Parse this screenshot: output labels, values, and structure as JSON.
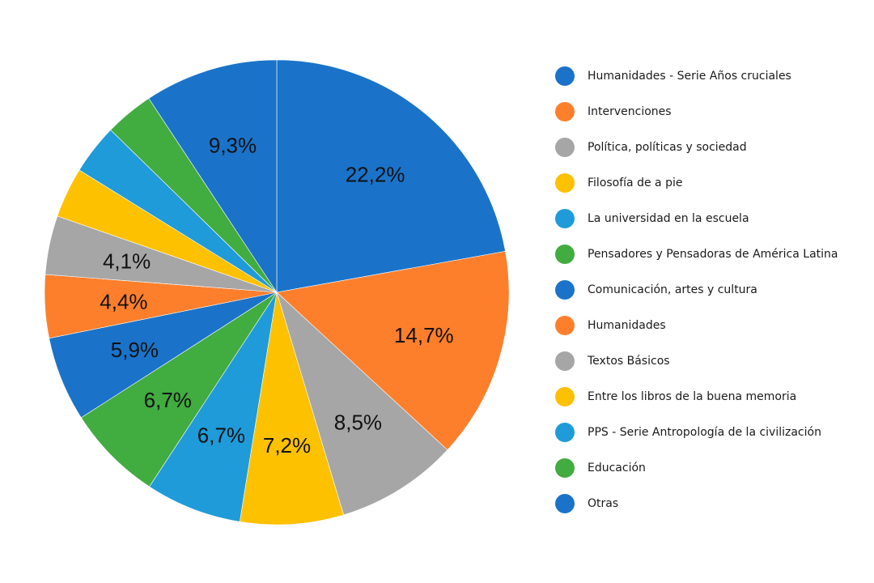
{
  "chart_data": {
    "type": "pie",
    "title": "",
    "slices": [
      {
        "label": "Humanidades - Serie Años cruciales",
        "value": 22.2,
        "value_label": "22,2%",
        "color": "#1a73c9"
      },
      {
        "label": "Intervenciones",
        "value": 14.7,
        "value_label": "14,7%",
        "color": "#fd7f2c"
      },
      {
        "label": "Política, políticas y sociedad",
        "value": 8.5,
        "value_label": "8,5%",
        "color": "#a6a6a6"
      },
      {
        "label": "Filosofía de a pie",
        "value": 7.2,
        "value_label": "7,2%",
        "color": "#fdc100"
      },
      {
        "label": "La universidad en la escuela",
        "value": 6.7,
        "value_label": "6,7%",
        "color": "#1f9bd9"
      },
      {
        "label": "Pensadores y Pensadoras de América Latina",
        "value": 6.7,
        "value_label": "6,7%",
        "color": "#41ac3f"
      },
      {
        "label": "Comunicación, artes y cultura",
        "value": 5.9,
        "value_label": "5,9%",
        "color": "#1a73c9"
      },
      {
        "label": "Humanidades",
        "value": 4.4,
        "value_label": "4,4%",
        "color": "#fd7f2c"
      },
      {
        "label": "Textos Básicos",
        "value": 4.1,
        "value_label": "4,1%",
        "color": "#a6a6a6"
      },
      {
        "label": "Entre los libros de la buena memoria",
        "value": 3.5,
        "value_label": "",
        "color": "#fdc100"
      },
      {
        "label": "PPS - Serie Antropología de la civilización",
        "value": 3.5,
        "value_label": "",
        "color": "#1f9bd9"
      },
      {
        "label": "Educación",
        "value": 3.4,
        "value_label": "",
        "color": "#41ac3f"
      },
      {
        "label": "Otras",
        "value": 9.3,
        "value_label": "9,3%",
        "color": "#1a73c9"
      }
    ],
    "legend_position": "right",
    "start_angle": "top",
    "direction": "clockwise"
  }
}
